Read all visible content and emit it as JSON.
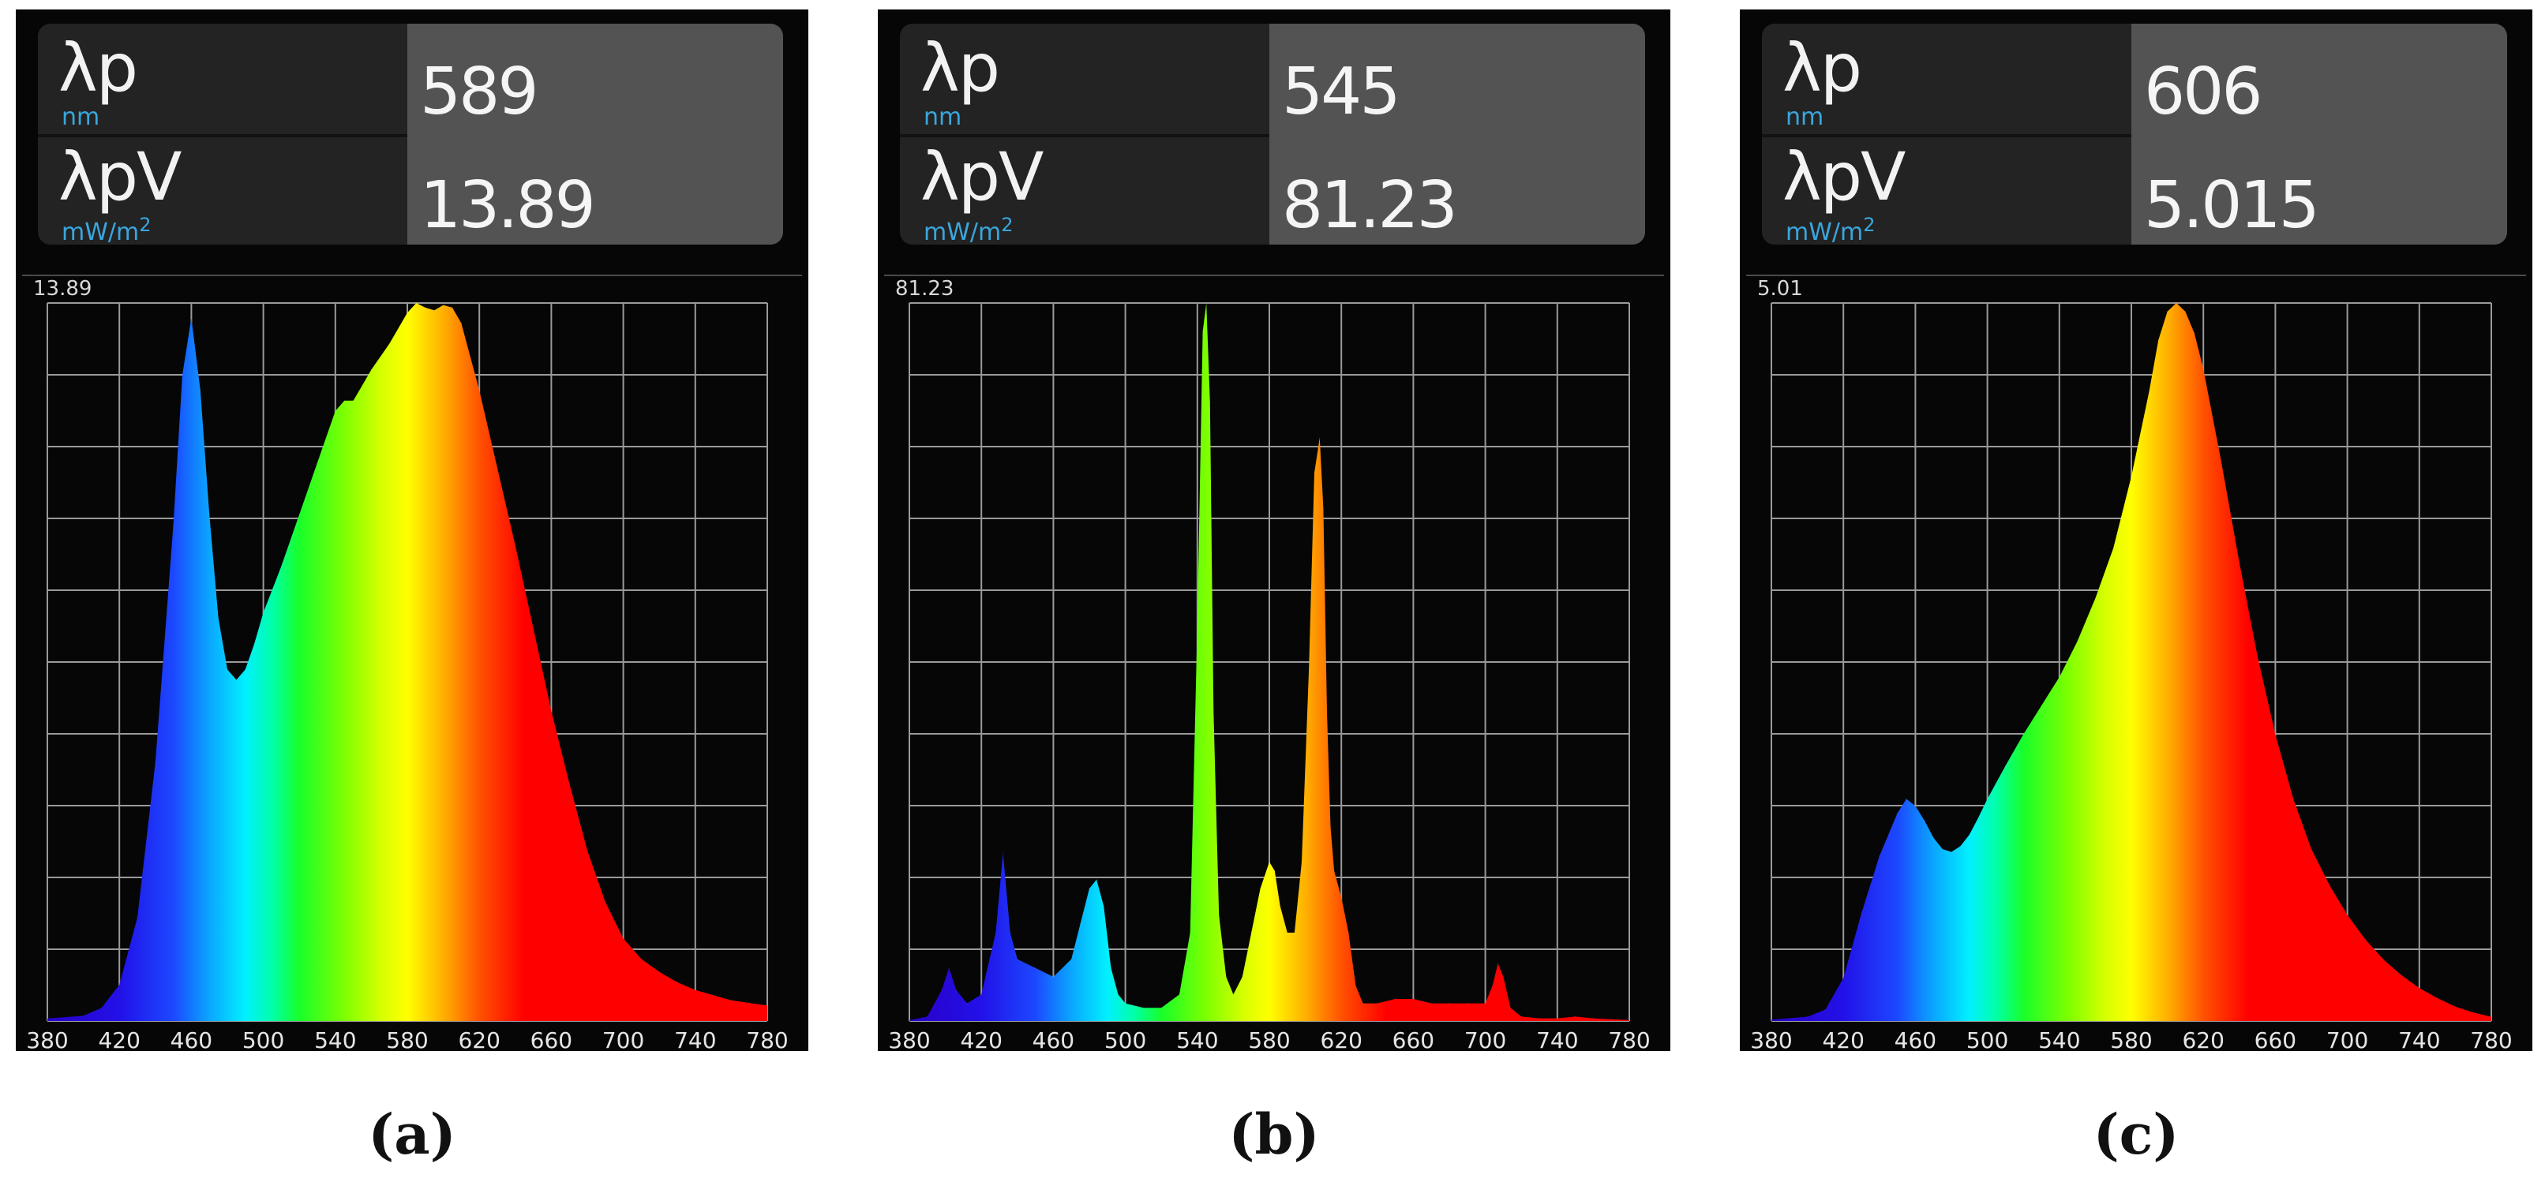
{
  "panels": [
    {
      "caption": "(a)",
      "lp_label": "λp",
      "lp_unit": "nm",
      "lp_value": "589",
      "lpv_label": "λpV",
      "lpv_unit": "mW/m",
      "lpv_unit_sup": "2",
      "lpv_value": "13.89",
      "ymax_label": "13.89"
    },
    {
      "caption": "(b)",
      "lp_label": "λp",
      "lp_unit": "nm",
      "lp_value": "545",
      "lpv_label": "λpV",
      "lpv_unit": "mW/m",
      "lpv_unit_sup": "2",
      "lpv_value": "81.23",
      "ymax_label": "81.23"
    },
    {
      "caption": "(c)",
      "lp_label": "λp",
      "lp_unit": "nm",
      "lp_value": "606",
      "lpv_label": "λpV",
      "lpv_unit": "mW/m",
      "lpv_unit_sup": "2",
      "lpv_value": "5.015",
      "ymax_label": "5.01"
    }
  ],
  "chart_data": [
    {
      "type": "area",
      "xlabel": "",
      "ylabel": "",
      "xlim": [
        380,
        780
      ],
      "ylim": [
        0,
        13.89
      ],
      "x_ticks": [
        380,
        420,
        460,
        500,
        540,
        580,
        620,
        660,
        700,
        740,
        780
      ],
      "grid": true,
      "x": [
        380,
        400,
        410,
        420,
        430,
        440,
        450,
        455,
        460,
        465,
        470,
        475,
        480,
        485,
        490,
        495,
        500,
        510,
        520,
        530,
        540,
        545,
        550,
        555,
        560,
        570,
        580,
        585,
        590,
        595,
        600,
        605,
        610,
        620,
        630,
        640,
        650,
        660,
        670,
        680,
        690,
        700,
        710,
        720,
        730,
        740,
        750,
        760,
        770,
        780
      ],
      "y": [
        0.05,
        0.1,
        0.25,
        0.7,
        2.0,
        5.0,
        9.6,
        12.5,
        13.6,
        12.2,
        9.8,
        7.8,
        6.8,
        6.6,
        6.8,
        7.3,
        7.9,
        8.8,
        9.8,
        10.8,
        11.8,
        12.0,
        12.0,
        12.3,
        12.6,
        13.1,
        13.7,
        13.89,
        13.8,
        13.75,
        13.85,
        13.8,
        13.5,
        12.2,
        10.7,
        9.2,
        7.6,
        6.0,
        4.6,
        3.3,
        2.3,
        1.6,
        1.2,
        0.95,
        0.75,
        0.6,
        0.5,
        0.4,
        0.35,
        0.3
      ]
    },
    {
      "type": "area",
      "xlabel": "",
      "ylabel": "",
      "xlim": [
        380,
        780
      ],
      "ylim": [
        0,
        81.23
      ],
      "x_ticks": [
        380,
        420,
        460,
        500,
        540,
        580,
        620,
        660,
        700,
        740,
        780
      ],
      "grid": true,
      "x": [
        380,
        390,
        398,
        402,
        406,
        412,
        420,
        428,
        432,
        436,
        440,
        450,
        460,
        470,
        475,
        480,
        484,
        488,
        492,
        496,
        500,
        510,
        520,
        530,
        536,
        540,
        543,
        545,
        547,
        549,
        552,
        556,
        560,
        565,
        570,
        575,
        580,
        583,
        586,
        590,
        594,
        598,
        602,
        605,
        608,
        610,
        612,
        614,
        616,
        620,
        624,
        628,
        632,
        640,
        650,
        660,
        670,
        680,
        690,
        700,
        704,
        707,
        710,
        714,
        720,
        730,
        740,
        750,
        760,
        770,
        780
      ],
      "y": [
        0.1,
        0.5,
        3.5,
        6.0,
        3.5,
        2.0,
        3.0,
        10,
        19,
        10,
        7,
        6,
        5,
        7,
        11,
        15,
        16,
        13,
        6,
        3,
        2,
        1.5,
        1.5,
        3,
        10,
        45,
        78,
        81.23,
        70,
        35,
        12,
        5,
        3,
        5,
        10,
        15,
        18,
        17,
        13,
        10,
        10,
        18,
        40,
        62,
        66,
        58,
        35,
        22,
        17,
        14,
        10,
        4,
        2,
        2,
        2.5,
        2.5,
        2,
        2,
        2,
        2,
        4,
        6.5,
        5,
        1.5,
        0.5,
        0.3,
        0.3,
        0.5,
        0.3,
        0.2,
        0.1
      ]
    },
    {
      "type": "area",
      "xlabel": "",
      "ylabel": "",
      "xlim": [
        380,
        780
      ],
      "ylim": [
        0,
        5.01
      ],
      "x_ticks": [
        380,
        420,
        460,
        500,
        540,
        580,
        620,
        660,
        700,
        740,
        780
      ],
      "grid": true,
      "x": [
        380,
        400,
        410,
        420,
        430,
        440,
        450,
        455,
        460,
        465,
        470,
        475,
        480,
        485,
        490,
        495,
        500,
        510,
        520,
        530,
        540,
        550,
        560,
        570,
        580,
        590,
        595,
        600,
        605,
        610,
        615,
        620,
        630,
        640,
        650,
        660,
        670,
        680,
        690,
        700,
        710,
        720,
        730,
        740,
        750,
        760,
        770,
        780
      ],
      "y": [
        0.01,
        0.03,
        0.08,
        0.3,
        0.75,
        1.15,
        1.45,
        1.55,
        1.5,
        1.4,
        1.28,
        1.2,
        1.18,
        1.22,
        1.3,
        1.42,
        1.55,
        1.78,
        2.0,
        2.2,
        2.4,
        2.65,
        2.95,
        3.3,
        3.8,
        4.4,
        4.75,
        4.95,
        5.01,
        4.95,
        4.8,
        4.55,
        3.9,
        3.2,
        2.55,
        2.0,
        1.55,
        1.2,
        0.95,
        0.74,
        0.57,
        0.43,
        0.32,
        0.23,
        0.16,
        0.1,
        0.06,
        0.03
      ]
    }
  ]
}
